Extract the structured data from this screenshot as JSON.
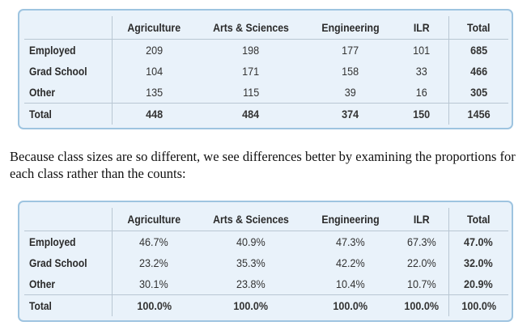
{
  "table_counts": {
    "columns": [
      "",
      "Agriculture",
      "Arts & Sciences",
      "Engineering",
      "ILR",
      "Total"
    ],
    "rows": [
      {
        "label": "Employed",
        "values": [
          "209",
          "198",
          "177",
          "101",
          "685"
        ]
      },
      {
        "label": "Grad School",
        "values": [
          "104",
          "171",
          "158",
          "33",
          "466"
        ]
      },
      {
        "label": "Other",
        "values": [
          "135",
          "115",
          "39",
          "16",
          "305"
        ]
      },
      {
        "label": "Total",
        "values": [
          "448",
          "484",
          "374",
          "150",
          "1456"
        ]
      }
    ]
  },
  "caption": "Because class sizes are so different, we see differences better by examining the proportions for each class rather than the counts:",
  "table_proportions": {
    "columns": [
      "",
      "Agriculture",
      "Arts & Sciences",
      "Engineering",
      "ILR",
      "Total"
    ],
    "rows": [
      {
        "label": "Employed",
        "values": [
          "46.7%",
          "40.9%",
          "47.3%",
          "67.3%",
          "47.0%"
        ]
      },
      {
        "label": "Grad School",
        "values": [
          "23.2%",
          "35.3%",
          "42.2%",
          "22.0%",
          "32.0%"
        ]
      },
      {
        "label": "Other",
        "values": [
          "30.1%",
          "23.8%",
          "10.4%",
          "10.7%",
          "20.9%"
        ]
      },
      {
        "label": "Total",
        "values": [
          "100.0%",
          "100.0%",
          "100.0%",
          "100.0%",
          "100.0%"
        ]
      }
    ]
  },
  "colors": {
    "box_background": "#e9f2fa",
    "box_border": "#9ec4e0",
    "rule": "#b9c7d3"
  }
}
